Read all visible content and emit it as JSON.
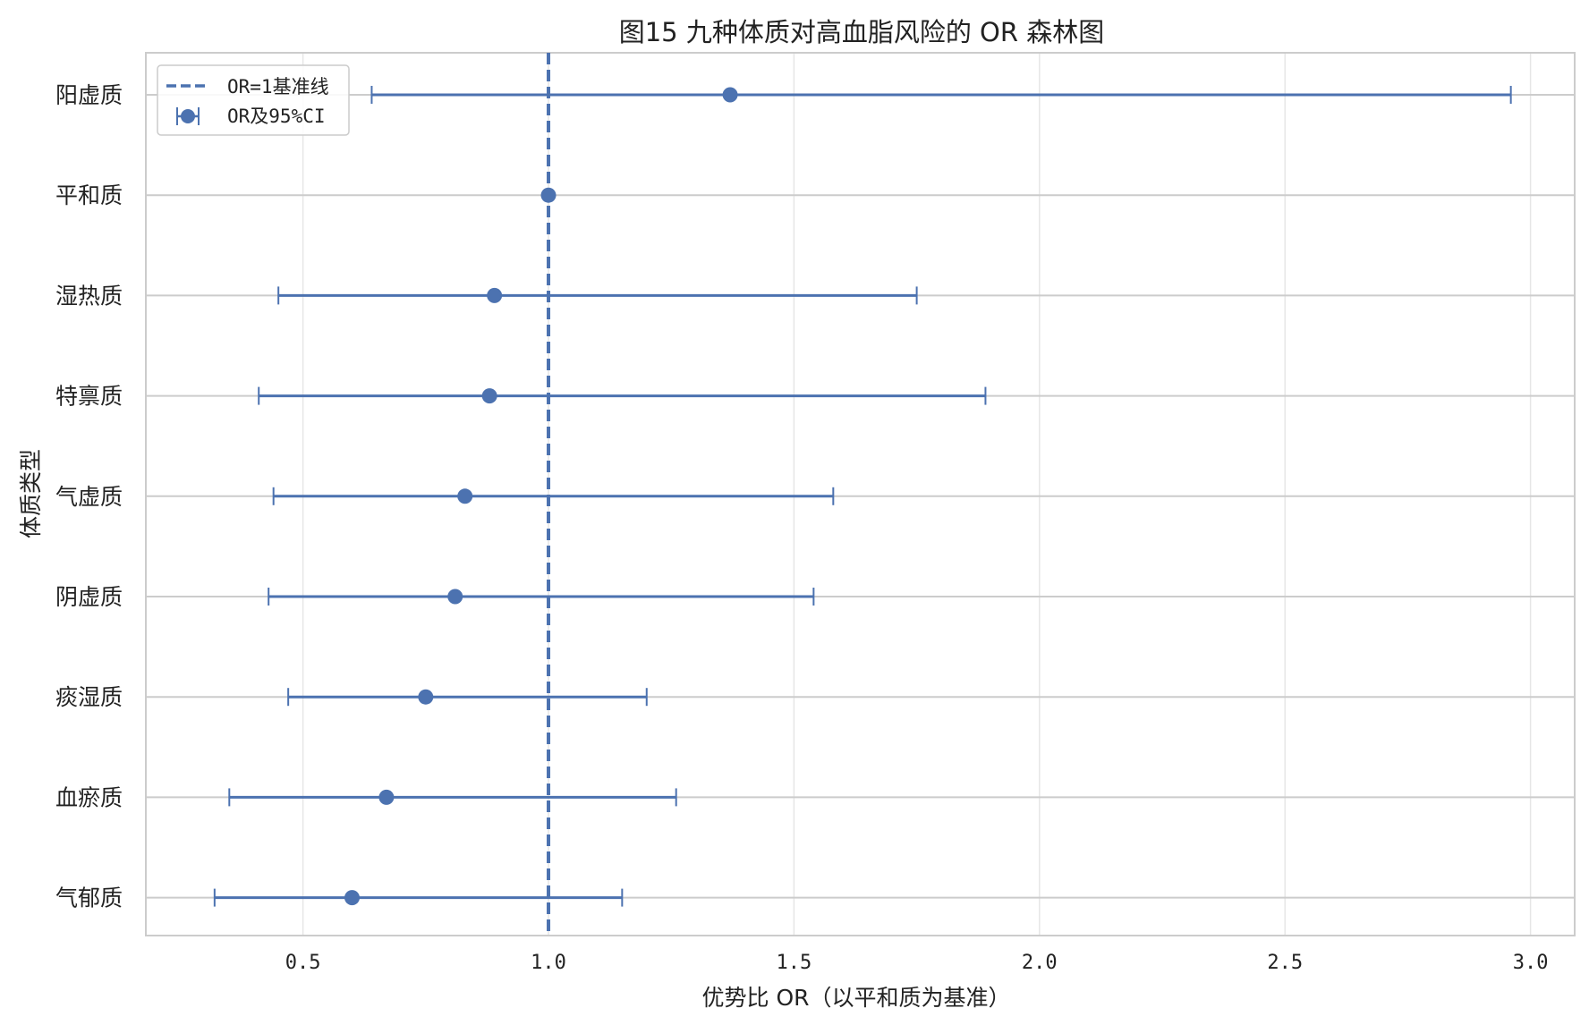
{
  "chart_data": {
    "type": "forest",
    "title": "图15 九种体质对高血脂风险的 OR 森林图",
    "xlabel": "优势比 OR（以平和质为基准）",
    "ylabel": "体质类型",
    "xlim": [
      0.18,
      3.09
    ],
    "xticks": [
      0.5,
      1.0,
      1.5,
      2.0,
      2.5,
      3.0
    ],
    "xtick_labels": [
      "0.5",
      "1.0",
      "1.5",
      "2.0",
      "2.5",
      "3.0"
    ],
    "reference_line": 1.0,
    "grid": true,
    "legend_position": "top-left",
    "legend": [
      "OR=1基准线",
      "OR及95%CI"
    ],
    "color": "#4C72B0",
    "rows": [
      {
        "label": "阳虚质",
        "or": 1.37,
        "ci_low": 0.64,
        "ci_high": 2.96
      },
      {
        "label": "平和质",
        "or": 1.0,
        "ci_low": 1.0,
        "ci_high": 1.0
      },
      {
        "label": "湿热质",
        "or": 0.89,
        "ci_low": 0.45,
        "ci_high": 1.75
      },
      {
        "label": "特禀质",
        "or": 0.88,
        "ci_low": 0.41,
        "ci_high": 1.89
      },
      {
        "label": "气虚质",
        "or": 0.83,
        "ci_low": 0.44,
        "ci_high": 1.58
      },
      {
        "label": "阴虚质",
        "or": 0.81,
        "ci_low": 0.43,
        "ci_high": 1.54
      },
      {
        "label": "痰湿质",
        "or": 0.75,
        "ci_low": 0.47,
        "ci_high": 1.2
      },
      {
        "label": "血瘀质",
        "or": 0.67,
        "ci_low": 0.35,
        "ci_high": 1.26
      },
      {
        "label": "气郁质",
        "or": 0.6,
        "ci_low": 0.32,
        "ci_high": 1.15
      }
    ]
  }
}
